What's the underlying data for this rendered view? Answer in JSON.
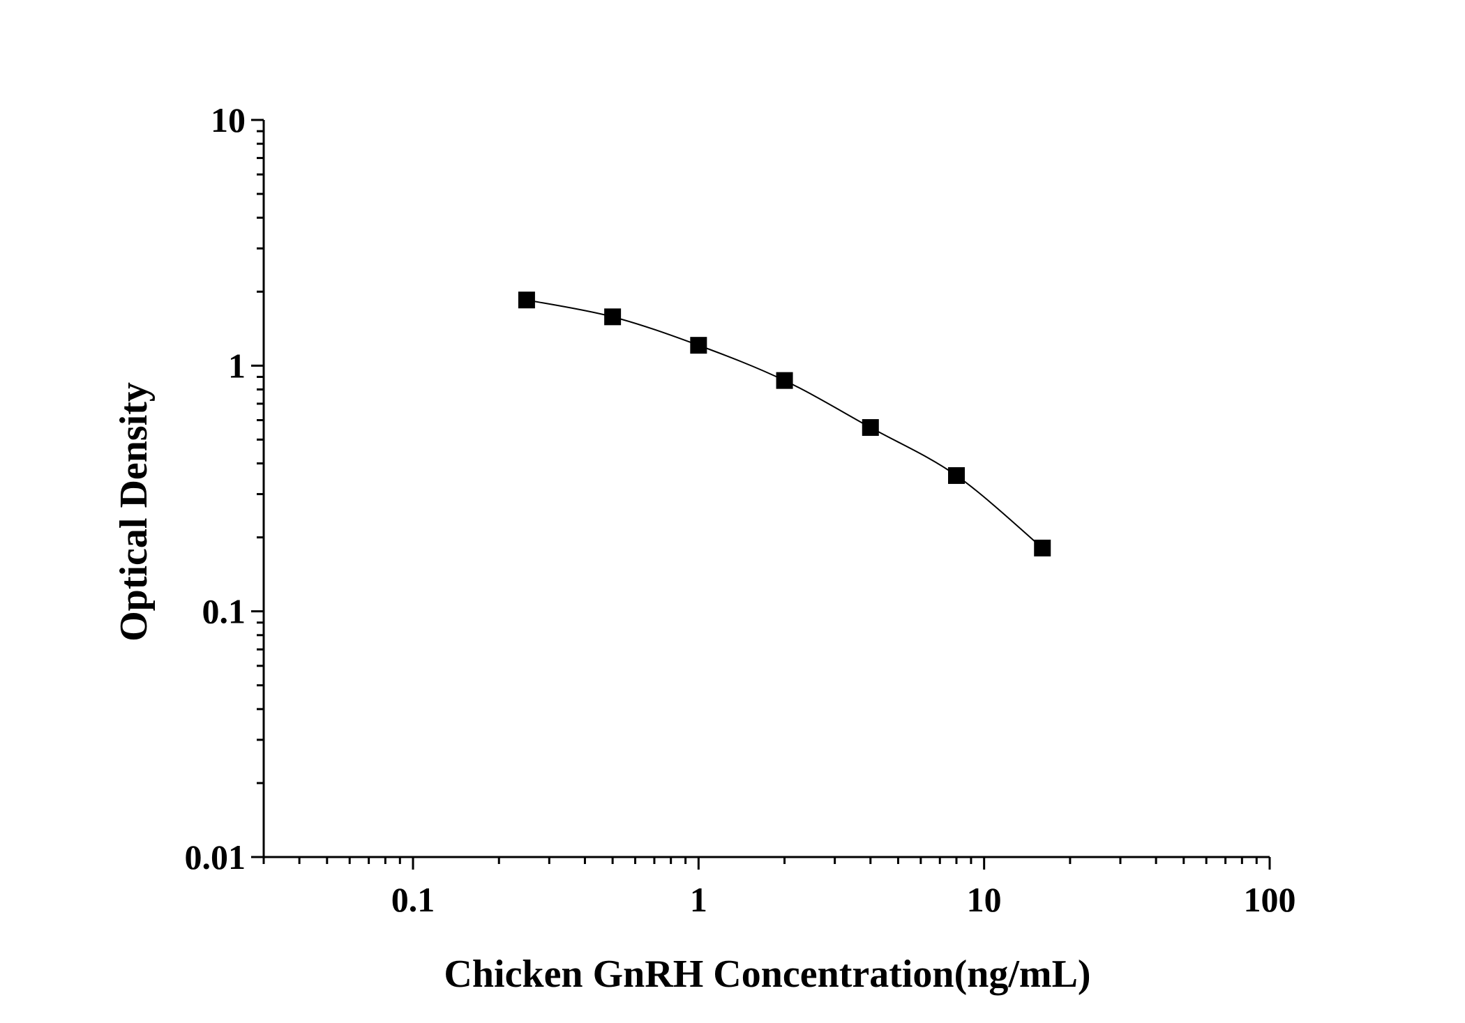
{
  "chart_data": {
    "type": "line",
    "title": "",
    "xlabel": "Chicken GnRH Concentration(ng/mL)",
    "ylabel": "Optical Density",
    "xscale": "log",
    "yscale": "log",
    "xlim": [
      0.03,
      100
    ],
    "ylim": [
      0.01,
      10
    ],
    "x_ticks": [
      {
        "value": 0.1,
        "label": "0.1"
      },
      {
        "value": 1,
        "label": "1"
      },
      {
        "value": 10,
        "label": "10"
      },
      {
        "value": 100,
        "label": "100"
      }
    ],
    "y_ticks": [
      {
        "value": 0.01,
        "label": "0.01"
      },
      {
        "value": 0.1,
        "label": "0.1"
      },
      {
        "value": 1,
        "label": "1"
      },
      {
        "value": 10,
        "label": "10"
      }
    ],
    "grid": false,
    "legend": "none",
    "marker": "square",
    "color": "#000000",
    "series": [
      {
        "name": "",
        "x": [
          0.25,
          0.5,
          1,
          2,
          4,
          8,
          16
        ],
        "y": [
          1.85,
          1.58,
          1.21,
          0.87,
          0.56,
          0.357,
          0.181
        ]
      }
    ]
  }
}
